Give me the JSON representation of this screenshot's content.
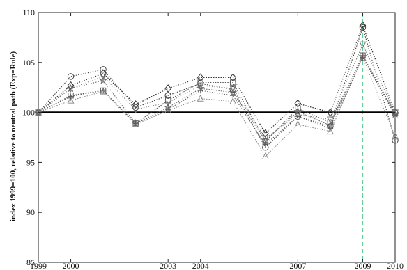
{
  "chart_data": {
    "type": "line",
    "title": "",
    "xlabel": "",
    "ylabel": "index 1999=100, relative to neutral path (Exp=Rule)",
    "xlim": [
      1999,
      2010
    ],
    "ylim": [
      85,
      110
    ],
    "x": [
      1999,
      2000,
      2001,
      2002,
      2003,
      2004,
      2005,
      2006,
      2007,
      2008,
      2009,
      2010
    ],
    "x_ticks": [
      1999,
      2000,
      2003,
      2004,
      2007,
      2009,
      2010
    ],
    "y_ticks": [
      85,
      90,
      95,
      100,
      105,
      110
    ],
    "reference_line": {
      "y": 100,
      "color": "#000000"
    },
    "vertical_marker": {
      "x": 2009,
      "color": "#66cc99",
      "style": "dashed"
    },
    "grid": false,
    "legend": "none",
    "series": [
      {
        "marker": "circle",
        "values": [
          100,
          103.6,
          104.3,
          100.5,
          101.7,
          102.9,
          102.3,
          96.5,
          99.6,
          98.6,
          108.5,
          97.2
        ]
      },
      {
        "marker": "diamond",
        "values": [
          100,
          102.7,
          103.9,
          100.8,
          102.4,
          103.5,
          103.5,
          97.9,
          100.9,
          100.0,
          108.7,
          100.0
        ]
      },
      {
        "marker": "square",
        "values": [
          100,
          101.7,
          102.2,
          98.9,
          101.2,
          103.0,
          103.0,
          97.1,
          100.4,
          99.0,
          105.7,
          99.9
        ]
      },
      {
        "marker": "triangle-down",
        "values": [
          100,
          102.4,
          103.6,
          100.3,
          101.0,
          102.7,
          102.4,
          97.4,
          99.8,
          99.3,
          106.8,
          100.0
        ]
      },
      {
        "marker": "star",
        "values": [
          100,
          102.4,
          103.2,
          98.9,
          100.5,
          102.4,
          102.0,
          97.2,
          100.1,
          98.7,
          105.6,
          99.8
        ]
      },
      {
        "marker": "triangle-up",
        "values": [
          100,
          101.2,
          102.1,
          98.8,
          100.2,
          101.4,
          101.1,
          95.6,
          98.8,
          98.1,
          105.5,
          97.6
        ]
      },
      {
        "marker": "plus",
        "values": [
          100,
          101.6,
          102.2,
          98.9,
          100.3,
          102.2,
          101.7,
          96.8,
          99.6,
          98.4,
          105.5,
          99.7
        ]
      }
    ]
  }
}
